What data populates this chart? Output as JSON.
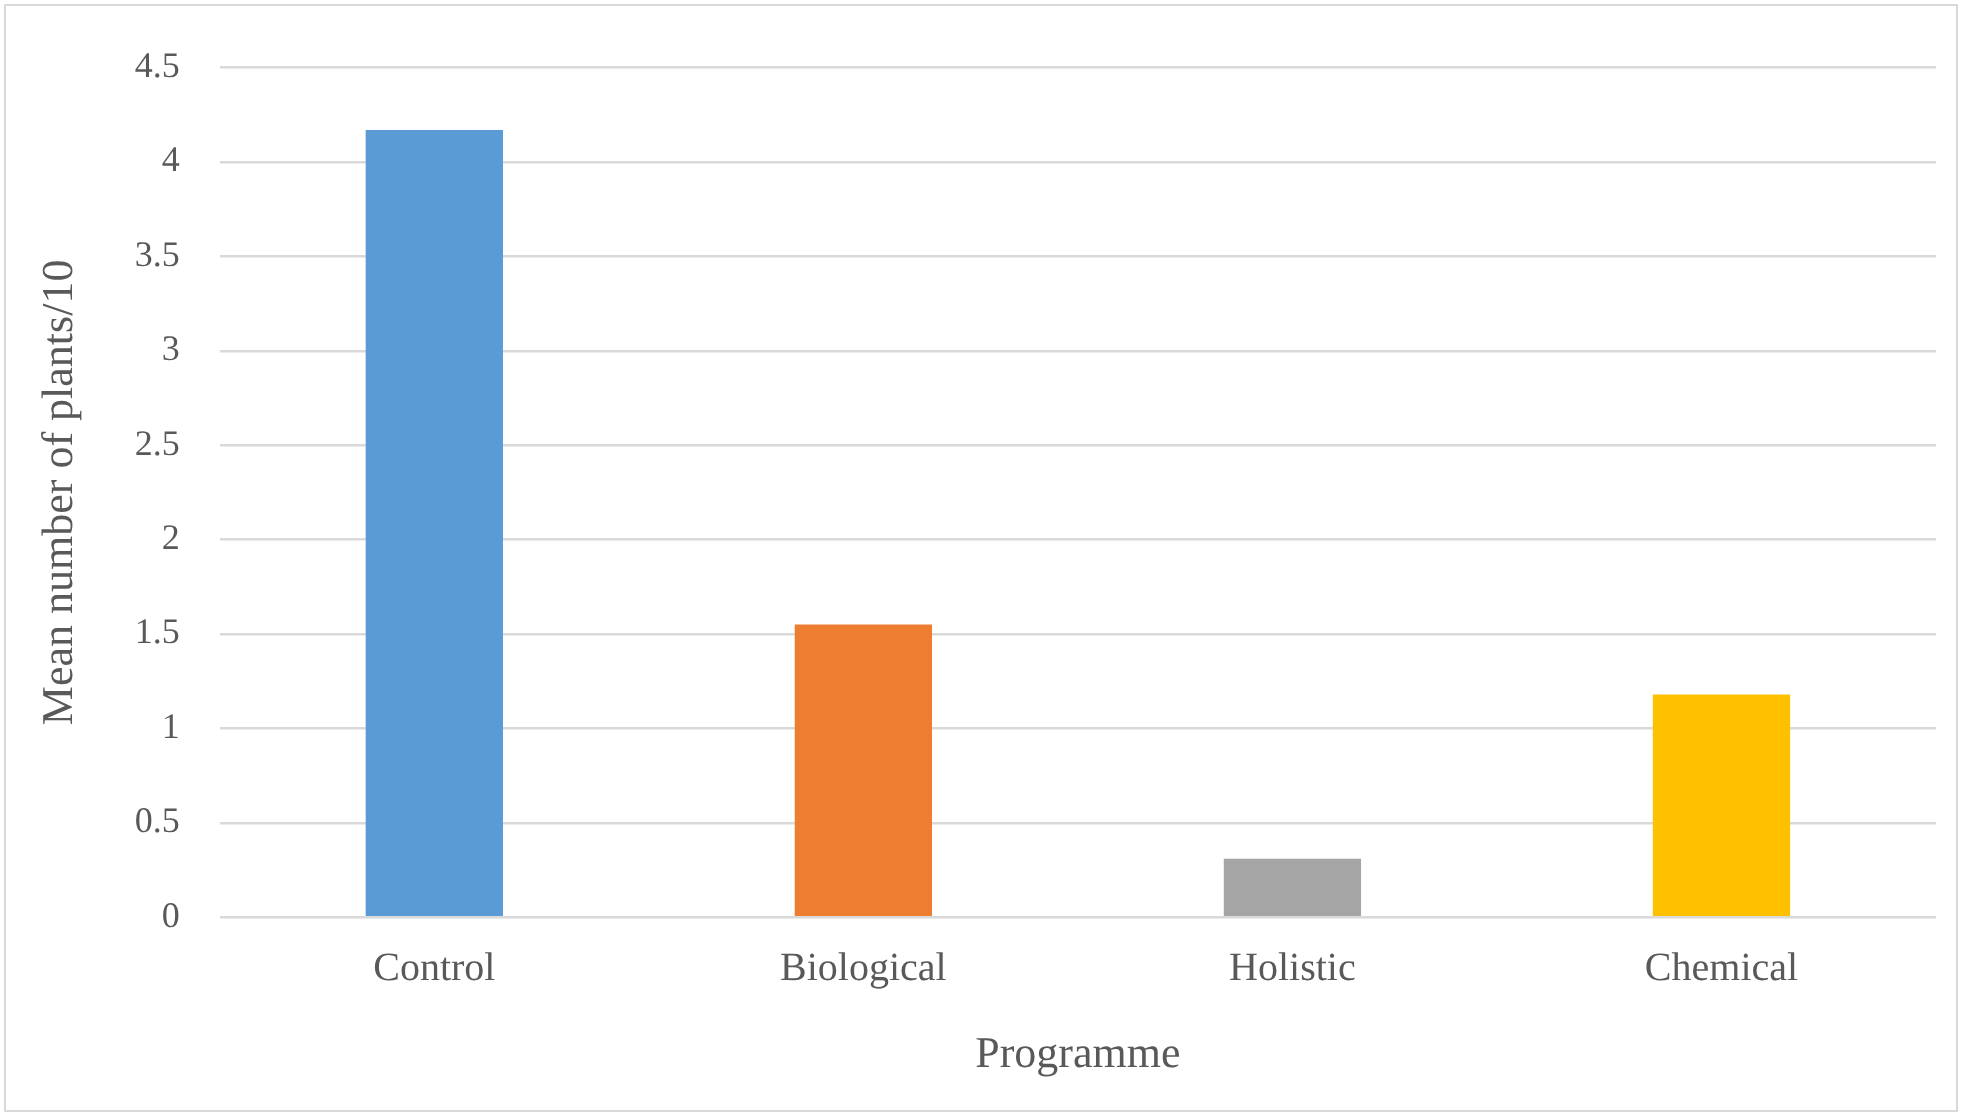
{
  "chart_data": {
    "type": "bar",
    "xlabel": "Programme",
    "ylabel": "Mean number of plants/10",
    "categories": [
      "Control",
      "Biological",
      "Holistic",
      "Chemical"
    ],
    "values": [
      4.17,
      1.55,
      0.31,
      1.18
    ],
    "colors": [
      "#5b9bd5",
      "#ed7d31",
      "#a5a5a5",
      "#ffc000"
    ],
    "ylim": [
      0,
      4.5
    ],
    "yticks": [
      0,
      0.5,
      1,
      1.5,
      2,
      2.5,
      3,
      3.5,
      4,
      4.5
    ],
    "grid": "y",
    "legend": false
  }
}
